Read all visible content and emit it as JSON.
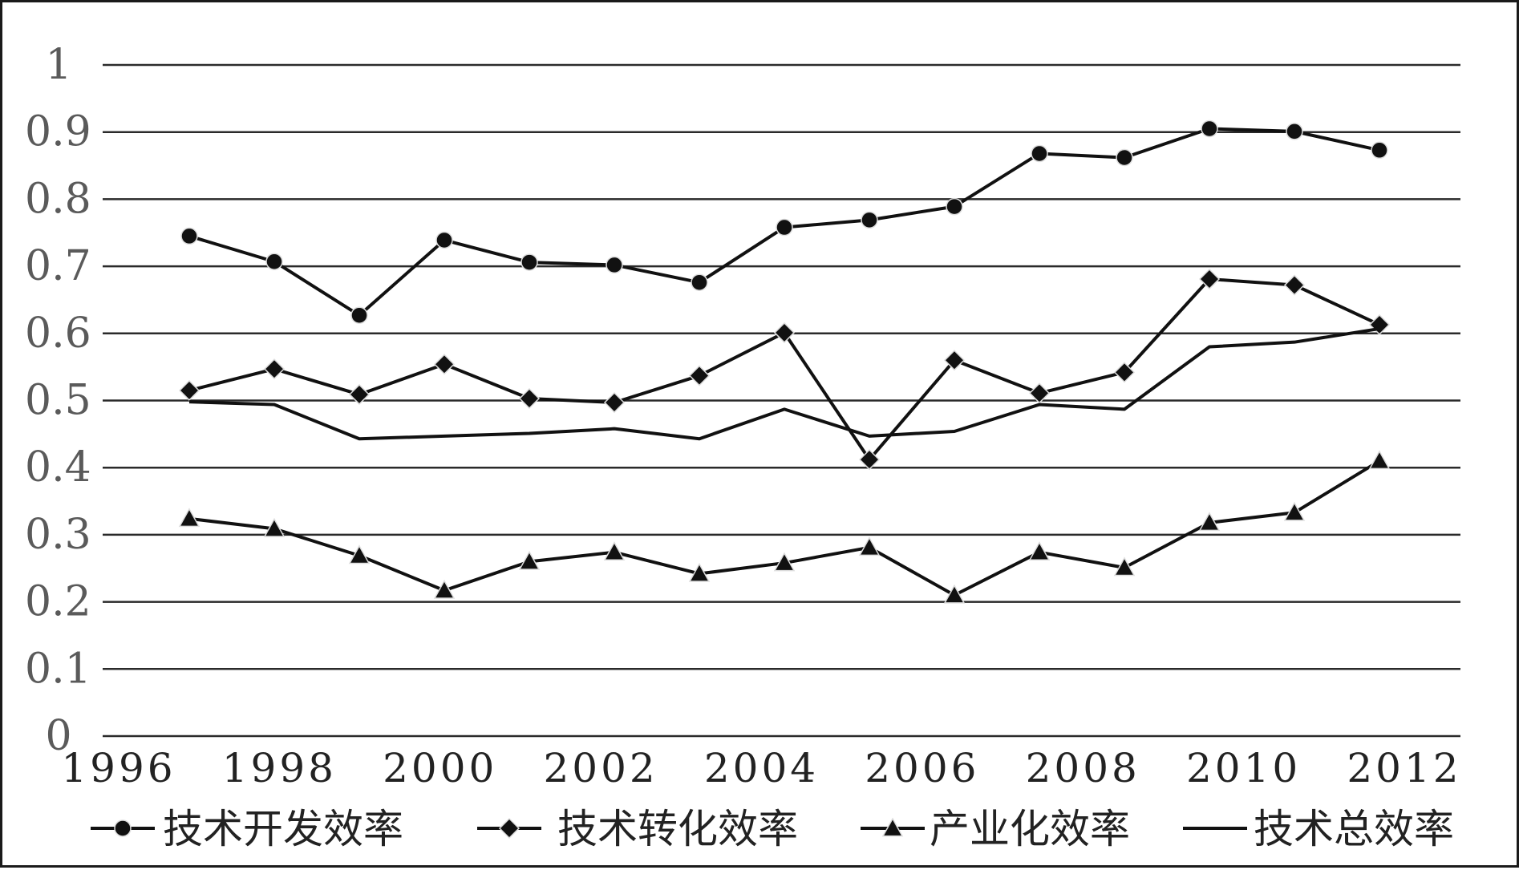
{
  "chart_data": {
    "type": "line",
    "title": "",
    "xlabel": "",
    "ylabel": "",
    "ylim": [
      0,
      1
    ],
    "xlim": [
      1996,
      2012
    ],
    "x_ticks": [
      "1996",
      "1998",
      "2000",
      "2002",
      "2004",
      "2006",
      "2008",
      "2010",
      "2012"
    ],
    "y_ticks": [
      "0",
      "0.1",
      "0.2",
      "0.3",
      "0.4",
      "0.5",
      "0.6",
      "0.7",
      "0.8",
      "0.9",
      "1"
    ],
    "grid": true,
    "legend_position": "bottom",
    "x": [
      1997,
      1998,
      1999,
      2000,
      2001,
      2002,
      2003,
      2004,
      2005,
      2006,
      2007,
      2008,
      2009,
      2010,
      2011
    ],
    "series": [
      {
        "name": "技术开发效率",
        "marker": "circle",
        "values": [
          0.745,
          0.707,
          0.627,
          0.739,
          0.706,
          0.702,
          0.676,
          0.758,
          0.769,
          0.789,
          0.868,
          0.862,
          0.905,
          0.901,
          0.873
        ]
      },
      {
        "name": "技术转化效率",
        "marker": "diamond",
        "values": [
          0.515,
          0.547,
          0.509,
          0.554,
          0.503,
          0.497,
          0.537,
          0.601,
          0.412,
          0.56,
          0.511,
          0.542,
          0.681,
          0.672,
          0.613
        ]
      },
      {
        "name": "产业化效率",
        "marker": "triangle",
        "values": [
          0.324,
          0.309,
          0.269,
          0.217,
          0.26,
          0.274,
          0.242,
          0.258,
          0.281,
          0.21,
          0.274,
          0.251,
          0.318,
          0.333,
          0.41
        ]
      },
      {
        "name": "技术总效率",
        "marker": "none",
        "values": [
          0.498,
          0.494,
          0.443,
          0.447,
          0.451,
          0.458,
          0.443,
          0.487,
          0.447,
          0.454,
          0.494,
          0.487,
          0.58,
          0.587,
          0.607
        ]
      }
    ],
    "line_color": "#111111",
    "grid_color": "#2a2a2a"
  }
}
